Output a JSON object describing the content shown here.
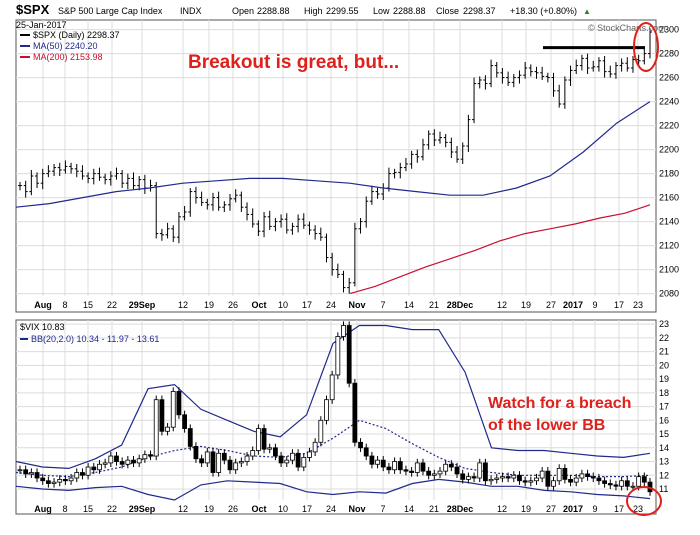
{
  "header": {
    "symbol": "$SPX",
    "name": "S&P 500 Large Cap Index",
    "exchange": "INDX",
    "date": "25-Jan-2017",
    "open_label": "Open",
    "open": "2288.88",
    "high_label": "High",
    "high": "2299.55",
    "low_label": "Low",
    "low": "2288.88",
    "close_label": "Close",
    "close": "2298.37",
    "change": "+18.30 (+0.80%)",
    "change_arrow": "▲",
    "watermark": "© StockCharts.com"
  },
  "colors": {
    "price_bar": "#000000",
    "ma50": "#1f2a8c",
    "ma200": "#c8102e",
    "bb": "#1f2a8c",
    "annotation": "#e0201b",
    "grid": "#dcdcdc",
    "panel_border": "#555555"
  },
  "annotations": {
    "top": "Breakout is great, but...",
    "bottom_line1": "Watch for a breach",
    "bottom_line2": "of the lower BB"
  },
  "chart_data": [
    {
      "type": "ohlc",
      "legend": [
        "$SPX (Daily) 2298.37",
        "MA(50) 2240.20",
        "MA(200) 2153.98"
      ],
      "x_tick_labels": [
        "Aug",
        "8",
        "15",
        "22",
        "29Sep",
        "12",
        "19",
        "26",
        "Oct",
        "10",
        "17",
        "24",
        "Nov",
        "7",
        "14",
        "21",
        "28Dec",
        "12",
        "19",
        "27",
        "2017",
        "9",
        "17",
        "23"
      ],
      "y_tick_labels": [
        "2080",
        "2100",
        "2120",
        "2140",
        "2160",
        "2180",
        "2200",
        "2220",
        "2240",
        "2260",
        "2280",
        "2300"
      ],
      "ylim": [
        2078,
        2308
      ],
      "grid": true,
      "resistance_level": 2285,
      "series": [
        {
          "name": "$SPX (Daily)",
          "kind": "close",
          "values": [
            2170,
            2165,
            2178,
            2172,
            2180,
            2182,
            2185,
            2183,
            2186,
            2184,
            2182,
            2178,
            2176,
            2180,
            2177,
            2175,
            2178,
            2180,
            2172,
            2176,
            2170,
            2175,
            2168,
            2170,
            2130,
            2129,
            2134,
            2127,
            2144,
            2148,
            2165,
            2160,
            2156,
            2154,
            2160,
            2152,
            2154,
            2159,
            2162,
            2152,
            2146,
            2138,
            2132,
            2144,
            2136,
            2140,
            2142,
            2133,
            2136,
            2142,
            2137,
            2133,
            2130,
            2127,
            2110,
            2100,
            2096,
            2085,
            2089,
            2134,
            2140,
            2157,
            2165,
            2163,
            2168,
            2180,
            2181,
            2185,
            2188,
            2196,
            2194,
            2204,
            2213,
            2208,
            2210,
            2206,
            2198,
            2192,
            2203,
            2225,
            2255,
            2258,
            2255,
            2270,
            2264,
            2260,
            2256,
            2260,
            2262,
            2268,
            2265,
            2264,
            2261,
            2260,
            2249,
            2238,
            2258,
            2266,
            2270,
            2276,
            2268,
            2269,
            2274,
            2265,
            2263,
            2270,
            2272,
            2268,
            2275,
            2274,
            2280,
            2298
          ]
        },
        {
          "name": "MA(50)",
          "kind": "line",
          "values": [
            2152,
            2155,
            2160,
            2165,
            2168,
            2172,
            2174,
            2176,
            2176,
            2174,
            2172,
            2168,
            2165,
            2162,
            2162,
            2168,
            2178,
            2198,
            2222,
            2240
          ]
        },
        {
          "name": "MA(200)",
          "kind": "line",
          "values": [
            2080,
            2086,
            2094,
            2102,
            2109,
            2116,
            2124,
            2130,
            2134,
            2138,
            2143,
            2147,
            2154
          ]
        }
      ]
    },
    {
      "type": "ohlc",
      "legend": [
        "$VIX 10.83",
        "BB(20,2.0) 10.34 - 11.97 - 13.61"
      ],
      "x_tick_labels": [
        "Aug",
        "8",
        "15",
        "22",
        "29Sep",
        "12",
        "19",
        "26",
        "Oct",
        "10",
        "17",
        "24",
        "Nov",
        "7",
        "14",
        "21",
        "28Dec",
        "12",
        "19",
        "27",
        "2017",
        "9",
        "17",
        "23"
      ],
      "y_tick_labels": [
        "11",
        "12",
        "13",
        "14",
        "15",
        "16",
        "17",
        "18",
        "19",
        "20",
        "21",
        "22",
        "23"
      ],
      "ylim": [
        10.2,
        23.3
      ],
      "grid": true,
      "series": [
        {
          "name": "$VIX",
          "kind": "candle",
          "values": [
            12.4,
            12.1,
            12.2,
            11.8,
            11.6,
            11.4,
            11.5,
            11.7,
            11.6,
            11.8,
            12.2,
            12.0,
            12.6,
            12.4,
            12.8,
            12.9,
            13.4,
            13.0,
            12.8,
            13.1,
            12.9,
            13.2,
            13.5,
            13.4,
            17.5,
            15.2,
            15.5,
            18.1,
            16.4,
            15.4,
            14.1,
            13.2,
            12.9,
            13.7,
            12.2,
            13.6,
            13.1,
            12.4,
            12.9,
            13.0,
            13.4,
            13.8,
            15.4,
            13.9,
            14.0,
            13.4,
            12.9,
            13.1,
            13.6,
            12.6,
            13.3,
            13.7,
            14.4,
            16.0,
            17.5,
            19.3,
            22.1,
            22.9,
            18.7,
            14.4,
            14.0,
            13.4,
            12.8,
            13.1,
            12.6,
            12.4,
            13.0,
            12.4,
            12.3,
            12.2,
            12.9,
            12.3,
            12.0,
            12.1,
            12.3,
            12.8,
            12.6,
            12.1,
            11.7,
            11.9,
            11.8,
            12.9,
            11.6,
            11.7,
            11.8,
            11.9,
            11.8,
            12.0,
            11.6,
            11.5,
            11.6,
            11.8,
            12.3,
            11.2,
            11.6,
            12.5,
            11.7,
            11.5,
            11.8,
            12.1,
            11.9,
            11.8,
            11.6,
            11.4,
            11.3,
            11.2,
            11.6,
            11.2,
            11.2,
            11.9,
            11.5,
            10.8
          ]
        },
        {
          "name": "BB upper",
          "kind": "line",
          "values": [
            13.0,
            12.6,
            12.5,
            13.2,
            14.2,
            18.3,
            18.6,
            16.8,
            16.0,
            15.2,
            14.8,
            16.4,
            21.6,
            22.9,
            22.9,
            22.6,
            22.6,
            19.5,
            14.0,
            13.8,
            13.8,
            13.6,
            13.4,
            13.3,
            13.6
          ]
        },
        {
          "name": "BB mid",
          "kind": "dotted",
          "values": [
            12.2,
            12.0,
            11.9,
            12.2,
            12.6,
            13.3,
            13.8,
            14.1,
            13.8,
            13.4,
            13.3,
            13.6,
            14.7,
            16.0,
            15.4,
            14.3,
            13.3,
            12.5,
            12.2,
            12.0,
            12.0,
            12.0,
            11.9,
            11.9,
            12.0
          ]
        },
        {
          "name": "BB lower",
          "kind": "line",
          "values": [
            11.2,
            11.0,
            10.9,
            11.1,
            11.2,
            10.6,
            10.2,
            11.3,
            11.6,
            11.5,
            11.4,
            10.8,
            10.6,
            10.8,
            10.7,
            11.4,
            11.7,
            11.5,
            11.2,
            11.2,
            10.9,
            10.8,
            10.6,
            10.5,
            10.3
          ]
        }
      ]
    }
  ]
}
